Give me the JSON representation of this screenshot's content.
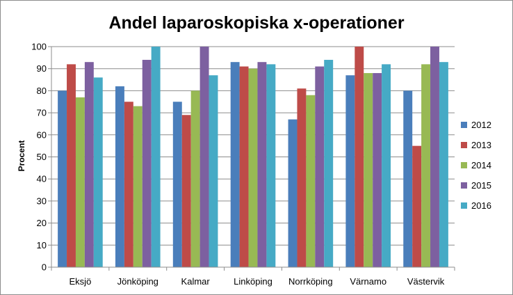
{
  "chart_data": {
    "type": "bar",
    "title": "Andel laparoskopiska x-operationer",
    "xlabel": "",
    "ylabel": "Procent",
    "ylim": [
      0,
      100
    ],
    "yticks": [
      0,
      10,
      20,
      30,
      40,
      50,
      60,
      70,
      80,
      90,
      100
    ],
    "grid": true,
    "legend_position": "right",
    "categories": [
      "Eksjö",
      "Jönköping",
      "Kalmar",
      "Linköping",
      "Norrköping",
      "Värnamo",
      "Västervik"
    ],
    "series": [
      {
        "name": "2012",
        "color": "#4a7ebb",
        "values": [
          80,
          82,
          75,
          93,
          67,
          87,
          80
        ]
      },
      {
        "name": "2013",
        "color": "#be4b48",
        "values": [
          92,
          75,
          69,
          91,
          81,
          100,
          55
        ]
      },
      {
        "name": "2014",
        "color": "#98b954",
        "values": [
          77,
          73,
          80,
          90,
          78,
          88,
          92
        ]
      },
      {
        "name": "2015",
        "color": "#7d60a0",
        "values": [
          93,
          94,
          100,
          93,
          91,
          88,
          100
        ]
      },
      {
        "name": "2016",
        "color": "#46aac5",
        "values": [
          86,
          100,
          87,
          92,
          94,
          92,
          93
        ]
      }
    ]
  }
}
